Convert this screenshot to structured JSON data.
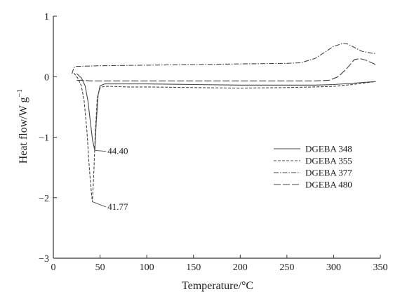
{
  "chart_data": {
    "type": "line",
    "xlabel": "Temperature/°C",
    "ylabel": "Heat flow/W g",
    "ylabel_sup": "−1",
    "xlim": [
      0,
      350
    ],
    "ylim": [
      -3,
      1
    ],
    "xticks": [
      0,
      50,
      100,
      150,
      200,
      250,
      300,
      350
    ],
    "yticks": [
      -3,
      -2,
      -1,
      0,
      1
    ],
    "ytick_labels": [
      "−3",
      "−2",
      "−1",
      "0",
      "1"
    ],
    "grid": false,
    "legend_position": "center-right",
    "series": [
      {
        "name": "DGEBA 348",
        "style": "solid",
        "x": [
          25,
          30,
          34,
          37,
          40,
          42,
          44.4,
          46,
          48,
          50,
          55,
          60,
          80,
          100,
          150,
          200,
          250,
          280,
          300,
          320,
          345
        ],
        "y": [
          0.05,
          -0.02,
          -0.15,
          -0.4,
          -0.8,
          -1.05,
          -1.22,
          -0.75,
          -0.3,
          -0.15,
          -0.12,
          -0.12,
          -0.12,
          -0.12,
          -0.13,
          -0.14,
          -0.14,
          -0.14,
          -0.13,
          -0.11,
          -0.08
        ]
      },
      {
        "name": "DGEBA 355",
        "style": "dashed",
        "x": [
          22,
          26,
          30,
          33,
          36,
          38,
          40,
          41.77,
          43,
          45,
          47,
          50,
          55,
          60,
          80,
          100,
          150,
          200,
          250,
          280,
          300,
          320,
          345
        ],
        "y": [
          0.06,
          -0.02,
          -0.15,
          -0.4,
          -0.9,
          -1.4,
          -1.8,
          -2.07,
          -1.7,
          -0.9,
          -0.35,
          -0.18,
          -0.16,
          -0.16,
          -0.17,
          -0.17,
          -0.18,
          -0.19,
          -0.18,
          -0.17,
          -0.16,
          -0.13,
          -0.08
        ]
      },
      {
        "name": "DGEBA 377",
        "style": "dash-dot",
        "x": [
          20,
          22,
          25,
          50,
          100,
          150,
          200,
          250,
          265,
          280,
          290,
          300,
          310,
          315,
          320,
          330,
          340,
          345
        ],
        "y": [
          0.05,
          0.15,
          0.17,
          0.18,
          0.19,
          0.2,
          0.21,
          0.22,
          0.23,
          0.3,
          0.4,
          0.5,
          0.55,
          0.54,
          0.5,
          0.42,
          0.39,
          0.38
        ]
      },
      {
        "name": "DGEBA 480",
        "style": "long-dash",
        "x": [
          25,
          30,
          40,
          60,
          100,
          150,
          200,
          250,
          280,
          295,
          305,
          315,
          322,
          328,
          335,
          345
        ],
        "y": [
          -0.06,
          -0.06,
          -0.07,
          -0.07,
          -0.07,
          -0.07,
          -0.07,
          -0.07,
          -0.07,
          -0.06,
          0.0,
          0.15,
          0.28,
          0.3,
          0.27,
          0.2
        ]
      }
    ],
    "annotations": [
      {
        "text": "44.40",
        "x": 44.4,
        "y": -1.22,
        "label_x": 58,
        "label_y": -1.28
      },
      {
        "text": "41.77",
        "x": 41.77,
        "y": -2.07,
        "label_x": 58,
        "label_y": -2.2
      }
    ]
  }
}
